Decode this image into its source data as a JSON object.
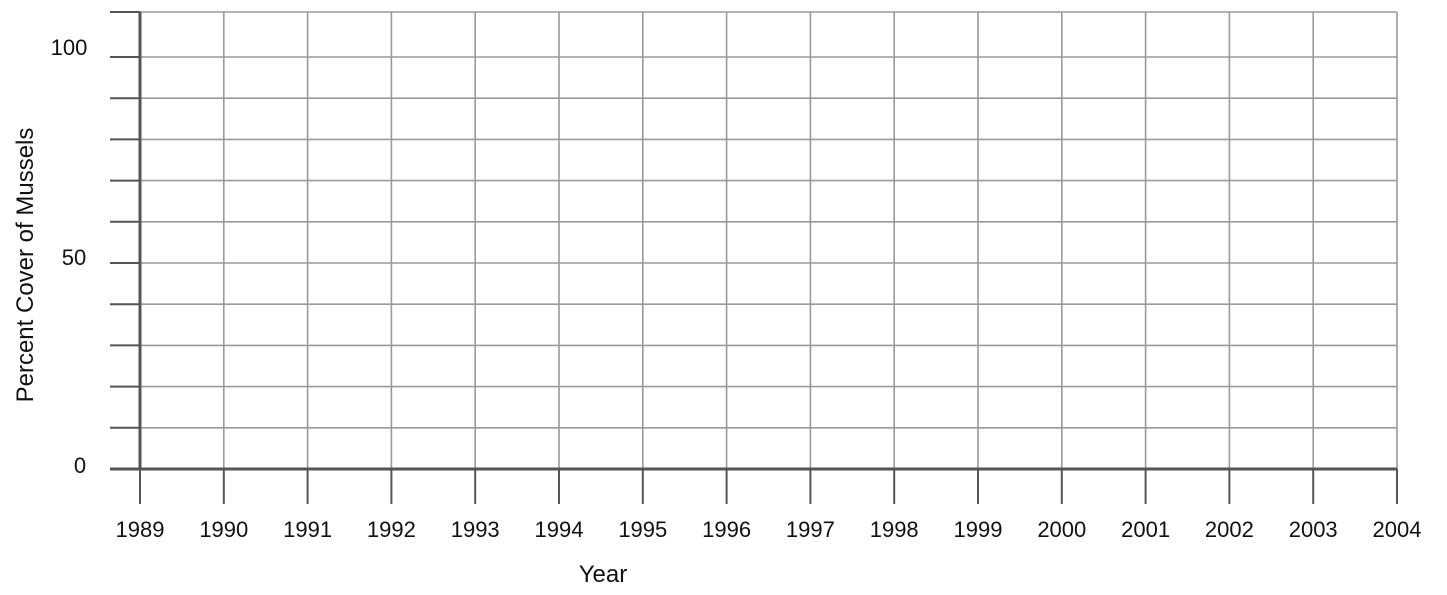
{
  "chart_data": {
    "type": "line",
    "title": "",
    "xlabel": "Year",
    "ylabel": "Percent Cover of Mussels",
    "x_ticks": [
      "1989",
      "1990",
      "1991",
      "1992",
      "1993",
      "1994",
      "1995",
      "1996",
      "1997",
      "1998",
      "1999",
      "2000",
      "2001",
      "2002",
      "2003",
      "2004"
    ],
    "y_ticks": [
      "0",
      "50",
      "100"
    ],
    "xlim": [
      1989,
      2004
    ],
    "ylim": [
      0,
      100
    ],
    "grid": true,
    "series": []
  },
  "colors": {
    "axis": "#555555",
    "grid": "#9a9a9a",
    "text": "#111111"
  }
}
